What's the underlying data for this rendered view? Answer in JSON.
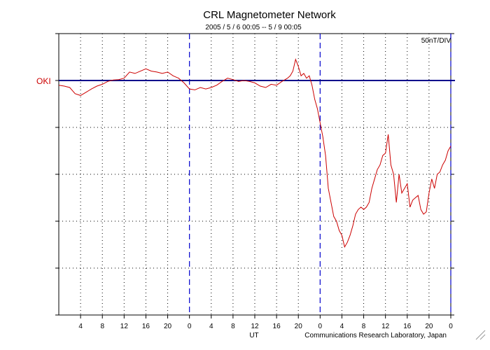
{
  "chart_data": {
    "type": "line",
    "title": "CRL Magnetometer Network",
    "subtitle": "2005 / 5 / 6  00:05 --  5 / 9  00:05",
    "xlabel": "UT",
    "scale_label": "50nT/DIV",
    "station_label": "OKI",
    "credit": "Communications Research Laboratory, Japan",
    "x_unit": "hours UT since 2005-05-06 00:05",
    "xlim": [
      0,
      72
    ],
    "ylim": [
      -5,
      1
    ],
    "y_unit": "divisions (50 nT per division, 0 = OKI baseline)",
    "x_tick_values": [
      4,
      8,
      12,
      16,
      20,
      24,
      28,
      32,
      36,
      40,
      44,
      48,
      52,
      56,
      60,
      64,
      68,
      72
    ],
    "x_tick_labels": [
      "4",
      "8",
      "12",
      "16",
      "20",
      "0",
      "4",
      "8",
      "12",
      "16",
      "20",
      "0",
      "4",
      "8",
      "12",
      "16",
      "20",
      "0"
    ],
    "day_boundaries": [
      24,
      48,
      72
    ],
    "grid": true,
    "colors": {
      "trace": "#cc0000",
      "baseline": "#00008b",
      "day_line": "#0000cc",
      "grid": "#000000"
    },
    "series": [
      {
        "x": [
          0,
          1,
          2,
          3,
          4,
          5,
          6,
          7,
          8,
          9,
          10,
          11,
          12,
          13,
          14,
          15,
          16,
          17,
          18,
          19,
          20,
          21,
          22,
          23,
          24,
          25,
          26,
          27,
          28,
          29,
          30,
          31,
          32,
          33,
          34,
          35,
          36,
          37,
          38,
          39,
          40,
          41,
          42,
          42.5,
          43,
          43.5,
          44,
          44.5,
          45,
          45.5,
          46,
          46.5,
          47,
          47.5,
          48,
          48.5,
          49,
          49.5,
          50,
          50.5,
          51,
          51.5,
          52,
          52.5,
          53,
          53.5,
          54,
          54.5,
          55,
          55.5,
          56,
          56.5,
          57,
          57.5,
          58,
          58.5,
          59,
          59.5,
          60,
          60.5,
          61,
          61.5,
          62,
          62.5,
          63,
          63.5,
          64,
          64.5,
          65,
          65.5,
          66,
          66.5,
          67,
          67.5,
          68,
          68.5,
          69,
          69.5,
          70,
          70.5,
          71,
          71.5,
          72
        ],
        "values": [
          -0.1,
          -0.12,
          -0.15,
          -0.28,
          -0.32,
          -0.25,
          -0.18,
          -0.12,
          -0.08,
          -0.02,
          0.01,
          0.02,
          0.05,
          0.18,
          0.15,
          0.2,
          0.25,
          0.2,
          0.18,
          0.15,
          0.18,
          0.1,
          0.05,
          -0.05,
          -0.18,
          -0.2,
          -0.15,
          -0.18,
          -0.15,
          -0.1,
          -0.02,
          0.05,
          0.02,
          -0.02,
          0.0,
          -0.02,
          -0.05,
          -0.12,
          -0.15,
          -0.08,
          -0.1,
          -0.02,
          0.05,
          0.1,
          0.2,
          0.45,
          0.3,
          0.1,
          0.15,
          0.05,
          0.1,
          -0.1,
          -0.4,
          -0.6,
          -0.9,
          -1.2,
          -1.6,
          -2.3,
          -2.6,
          -2.9,
          -3.0,
          -3.2,
          -3.3,
          -3.55,
          -3.45,
          -3.3,
          -3.1,
          -2.85,
          -2.75,
          -2.7,
          -2.75,
          -2.7,
          -2.6,
          -2.3,
          -2.1,
          -1.9,
          -1.8,
          -1.6,
          -1.55,
          -1.15,
          -1.8,
          -2.0,
          -2.6,
          -2.0,
          -2.4,
          -2.3,
          -2.2,
          -2.7,
          -2.55,
          -2.5,
          -2.45,
          -2.75,
          -2.85,
          -2.8,
          -2.4,
          -2.1,
          -2.3,
          -2.0,
          -1.95,
          -1.8,
          -1.7,
          -1.5,
          -1.4
        ]
      }
    ]
  }
}
